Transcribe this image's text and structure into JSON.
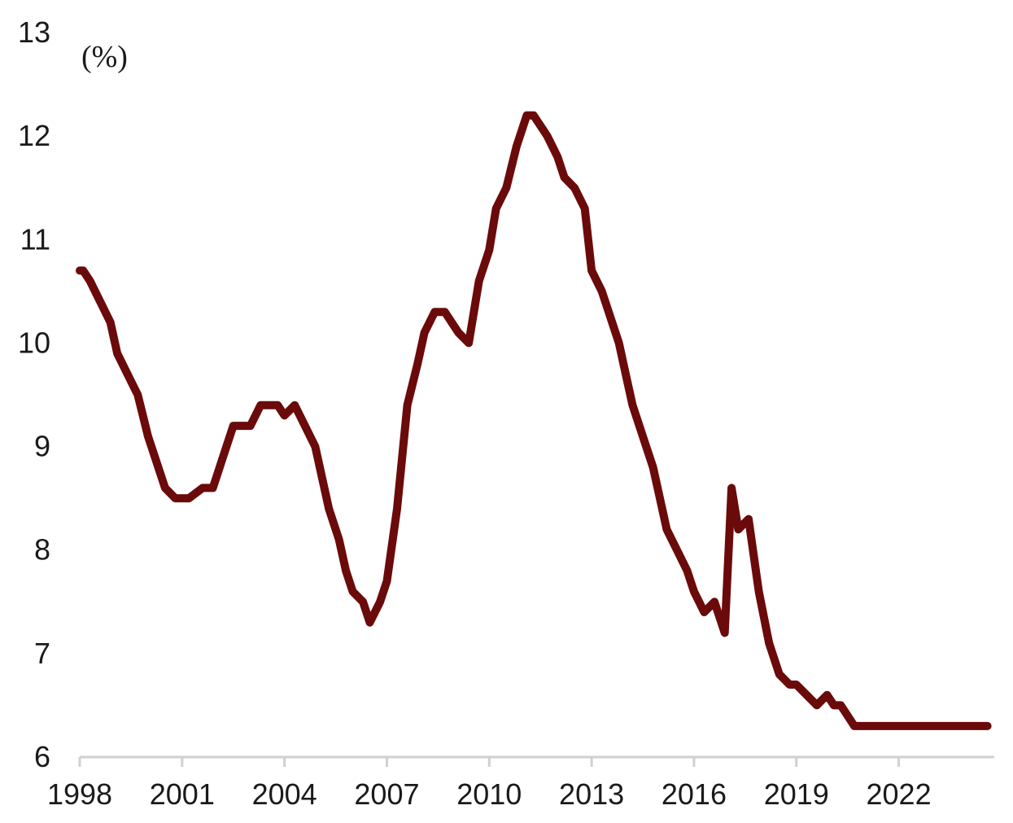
{
  "chart_data": {
    "type": "line",
    "title": "",
    "xlabel": "",
    "ylabel": "",
    "unit_label": "(%)",
    "xlim": [
      1998,
      2024.8
    ],
    "ylim": [
      6,
      13
    ],
    "y_ticks": [
      6,
      7,
      8,
      9,
      10,
      11,
      12,
      13
    ],
    "x_ticks": [
      1998,
      2001,
      2004,
      2007,
      2010,
      2013,
      2016,
      2019,
      2022
    ],
    "grid": false,
    "legend": "none",
    "colors": {
      "line": "#6b0a0a",
      "axis": "#d0d0d0",
      "text": "#1a1a1a"
    },
    "series": [
      {
        "x": [
          1998.0,
          1998.1,
          1998.3,
          1998.6,
          1998.9,
          1999.1,
          1999.4,
          1999.7,
          2000.0,
          2000.2,
          2000.5,
          2000.8,
          2001.0,
          2001.2,
          2001.6,
          2001.9,
          2002.0,
          2002.2,
          2002.5,
          2002.8,
          2003.0,
          2003.3,
          2003.6,
          2003.8,
          2004.0,
          2004.3,
          2004.6,
          2004.9,
          2005.1,
          2005.3,
          2005.6,
          2005.8,
          2006.0,
          2006.3,
          2006.5,
          2006.8,
          2007.0,
          2007.3,
          2007.6,
          2007.9,
          2008.1,
          2008.4,
          2008.7,
          2008.9,
          2009.1,
          2009.4,
          2009.7,
          2010.0,
          2010.2,
          2010.5,
          2010.8,
          2011.1,
          2011.3,
          2011.5,
          2011.7,
          2012.0,
          2012.2,
          2012.5,
          2012.8,
          2013.0,
          2013.3,
          2013.5,
          2013.8,
          2014.0,
          2014.2,
          2014.5,
          2014.8,
          2015.0,
          2015.2,
          2015.5,
          2015.8,
          2016.0,
          2016.3,
          2016.6,
          2016.9,
          2017.1,
          2017.3,
          2017.6,
          2017.9,
          2018.2,
          2018.5,
          2018.8,
          2019.0,
          2019.3,
          2019.6,
          2019.9,
          2020.1,
          2020.3,
          2020.5,
          2020.7,
          2020.9,
          2021.1,
          2021.3,
          2021.5,
          2021.7,
          2021.9,
          2022.2,
          2022.5,
          2022.8,
          2023.1,
          2023.4,
          2023.7,
          2024.0,
          2024.3,
          2024.6
        ],
        "values": [
          10.7,
          10.7,
          10.6,
          10.4,
          10.2,
          9.9,
          9.7,
          9.5,
          9.1,
          8.9,
          8.6,
          8.5,
          8.5,
          8.5,
          8.6,
          8.6,
          8.7,
          8.9,
          9.2,
          9.2,
          9.2,
          9.4,
          9.4,
          9.4,
          9.3,
          9.4,
          9.2,
          9.0,
          8.7,
          8.4,
          8.1,
          7.8,
          7.6,
          7.5,
          7.3,
          7.5,
          7.7,
          8.4,
          9.4,
          9.8,
          10.1,
          10.3,
          10.3,
          10.2,
          10.1,
          10.0,
          10.6,
          10.9,
          11.3,
          11.5,
          11.9,
          12.2,
          12.2,
          12.1,
          12.0,
          11.8,
          11.6,
          11.5,
          11.3,
          10.7,
          10.5,
          10.3,
          10.0,
          9.7,
          9.4,
          9.1,
          8.8,
          8.5,
          8.2,
          8.0,
          7.8,
          7.6,
          7.4,
          7.5,
          7.2,
          8.6,
          8.2,
          8.3,
          7.6,
          7.1,
          6.8,
          6.7,
          6.7,
          6.6,
          6.5,
          6.6,
          6.5,
          6.5,
          6.4,
          6.3,
          6.3,
          6.3,
          6.3,
          6.3,
          6.3,
          6.3,
          6.3,
          6.3,
          6.3,
          6.3,
          6.3,
          6.3,
          6.3,
          6.3,
          6.3
        ]
      }
    ]
  }
}
